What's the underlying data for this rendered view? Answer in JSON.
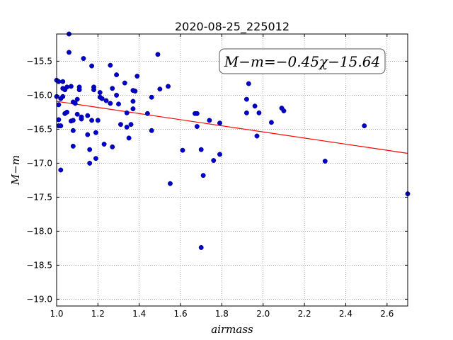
{
  "chart_data": {
    "type": "scatter",
    "title": "2020-08-25_225012",
    "xlabel": "airmass",
    "ylabel": "M−m",
    "xlim": [
      1.0,
      2.7
    ],
    "ylim": [
      -19.1,
      -15.1
    ],
    "y_inverted": true,
    "grid": true,
    "xticks": [
      "1.0",
      "1.2",
      "1.4",
      "1.6",
      "1.8",
      "2.0",
      "2.2",
      "2.4",
      "2.6"
    ],
    "yticks": [
      "−15.5",
      "−16.0",
      "−16.5",
      "−17.0",
      "−17.5",
      "−18.0",
      "−18.5",
      "−19.0"
    ],
    "annotation": "M−m=−0.45χ−15.64",
    "annotation_position": "top-right",
    "point_color": "#0000cc",
    "fit_line": {
      "slope": -0.45,
      "intercept": -15.64,
      "color": "#ff0000"
    },
    "series": [
      {
        "points": [
          [
            1.0,
            -15.78
          ],
          [
            1.01,
            -15.8
          ],
          [
            1.0,
            -16.02
          ],
          [
            1.01,
            -16.14
          ],
          [
            1.01,
            -16.36
          ],
          [
            1.01,
            -16.45
          ],
          [
            1.02,
            -17.1
          ],
          [
            1.02,
            -16.45
          ],
          [
            1.02,
            -16.05
          ],
          [
            1.03,
            -15.8
          ],
          [
            1.03,
            -16.02
          ],
          [
            1.03,
            -15.9
          ],
          [
            1.04,
            -15.92
          ],
          [
            1.04,
            -16.27
          ],
          [
            1.05,
            -16.25
          ],
          [
            1.05,
            -15.88
          ],
          [
            1.06,
            -15.37
          ],
          [
            1.06,
            -15.1
          ],
          [
            1.07,
            -15.87
          ],
          [
            1.07,
            -16.38
          ],
          [
            1.08,
            -16.37
          ],
          [
            1.08,
            -16.1
          ],
          [
            1.08,
            -16.52
          ],
          [
            1.08,
            -16.75
          ],
          [
            1.09,
            -16.12
          ],
          [
            1.1,
            -16.28
          ],
          [
            1.1,
            -16.06
          ],
          [
            1.11,
            -15.88
          ],
          [
            1.11,
            -15.92
          ],
          [
            1.12,
            -16.35
          ],
          [
            1.12,
            -16.32
          ],
          [
            1.13,
            -15.46
          ],
          [
            1.15,
            -16.3
          ],
          [
            1.15,
            -16.58
          ],
          [
            1.16,
            -17.0
          ],
          [
            1.16,
            -16.8
          ],
          [
            1.17,
            -16.37
          ],
          [
            1.17,
            -15.57
          ],
          [
            1.18,
            -15.88
          ],
          [
            1.18,
            -15.92
          ],
          [
            1.19,
            -16.55
          ],
          [
            1.19,
            -16.93
          ],
          [
            1.2,
            -16.37
          ],
          [
            1.21,
            -16.03
          ],
          [
            1.21,
            -15.96
          ],
          [
            1.22,
            -16.05
          ],
          [
            1.23,
            -16.72
          ],
          [
            1.24,
            -16.08
          ],
          [
            1.26,
            -15.56
          ],
          [
            1.26,
            -16.12
          ],
          [
            1.27,
            -16.76
          ],
          [
            1.27,
            -15.9
          ],
          [
            1.29,
            -15.7
          ],
          [
            1.29,
            -16.0
          ],
          [
            1.3,
            -16.13
          ],
          [
            1.31,
            -16.43
          ],
          [
            1.33,
            -15.82
          ],
          [
            1.34,
            -16.47
          ],
          [
            1.34,
            -16.26
          ],
          [
            1.35,
            -16.63
          ],
          [
            1.36,
            -16.43
          ],
          [
            1.37,
            -16.09
          ],
          [
            1.37,
            -16.2
          ],
          [
            1.37,
            -15.93
          ],
          [
            1.38,
            -15.94
          ],
          [
            1.39,
            -15.72
          ],
          [
            1.44,
            -16.27
          ],
          [
            1.46,
            -16.52
          ],
          [
            1.46,
            -16.03
          ],
          [
            1.49,
            -15.4
          ],
          [
            1.5,
            -15.91
          ],
          [
            1.54,
            -15.87
          ],
          [
            1.55,
            -17.3
          ],
          [
            1.61,
            -16.81
          ],
          [
            1.67,
            -16.27
          ],
          [
            1.68,
            -16.27
          ],
          [
            1.68,
            -16.46
          ],
          [
            1.7,
            -16.8
          ],
          [
            1.7,
            -18.24
          ],
          [
            1.71,
            -17.18
          ],
          [
            1.74,
            -16.37
          ],
          [
            1.76,
            -16.96
          ],
          [
            1.79,
            -16.87
          ],
          [
            1.79,
            -16.41
          ],
          [
            1.92,
            -16.06
          ],
          [
            1.92,
            -16.26
          ],
          [
            1.93,
            -15.83
          ],
          [
            1.96,
            -16.16
          ],
          [
            1.97,
            -16.6
          ],
          [
            1.98,
            -16.26
          ],
          [
            2.04,
            -16.4
          ],
          [
            2.09,
            -16.19
          ],
          [
            2.1,
            -16.23
          ],
          [
            2.3,
            -16.97
          ],
          [
            2.49,
            -16.45
          ],
          [
            2.7,
            -17.45
          ]
        ]
      }
    ]
  }
}
